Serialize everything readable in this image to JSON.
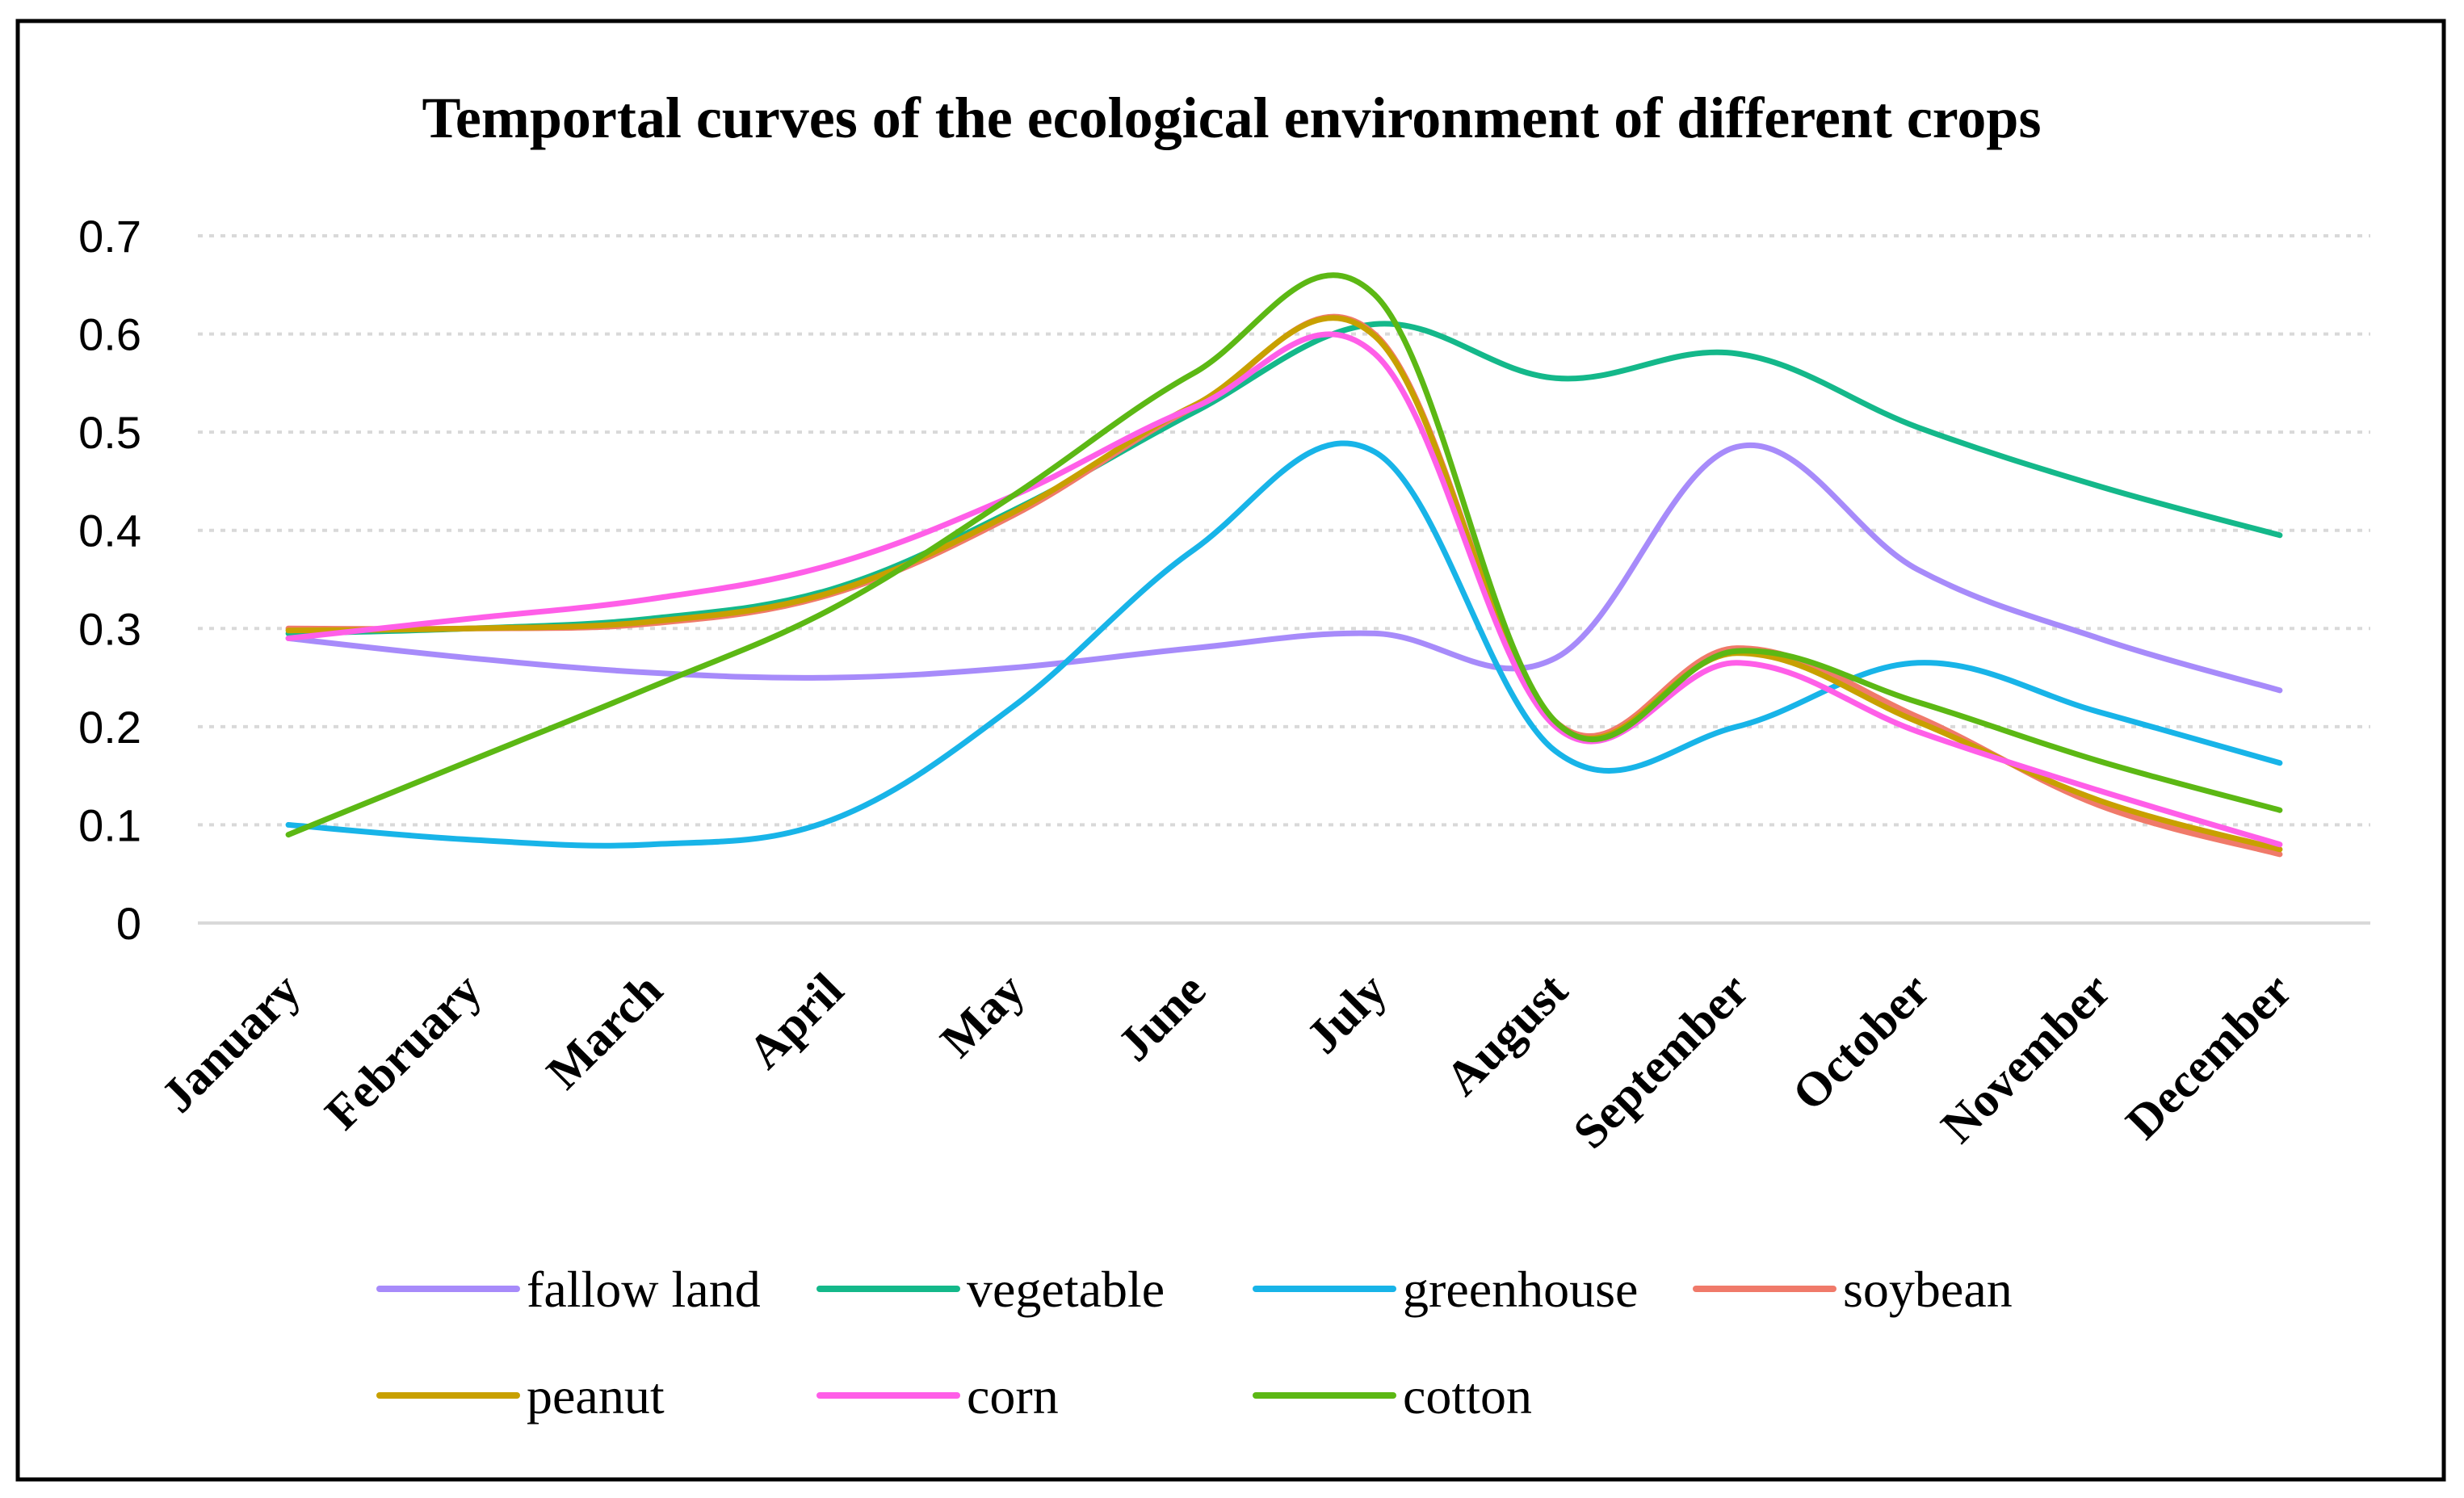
{
  "chart_data": {
    "type": "line",
    "title": "Temportal curves of the ecological environment of different crops",
    "xlabel": "",
    "ylabel": "",
    "ylim": [
      0,
      0.7
    ],
    "yticks": [
      0,
      0.1,
      0.2,
      0.3,
      0.4,
      0.5,
      0.6,
      0.7
    ],
    "ytick_labels": [
      "0",
      "0.1",
      "0.2",
      "0.3",
      "0.4",
      "0.5",
      "0.6",
      "0.7"
    ],
    "grid": true,
    "legend_position": "bottom",
    "categories": [
      "January",
      "February",
      "March",
      "April",
      "May",
      "June",
      "July",
      "August",
      "September",
      "October",
      "November",
      "December"
    ],
    "series": [
      {
        "name": "fallow land",
        "color": "#a78bfa",
        "values": [
          0.29,
          0.27,
          0.255,
          0.25,
          0.26,
          0.28,
          0.295,
          0.27,
          0.485,
          0.36,
          0.29,
          0.237
        ]
      },
      {
        "name": "vegetable",
        "color": "#14b88a",
        "values": [
          0.295,
          0.3,
          0.31,
          0.34,
          0.42,
          0.52,
          0.61,
          0.555,
          0.58,
          0.505,
          0.445,
          0.395
        ]
      },
      {
        "name": "greenhouse",
        "color": "#18b4e8",
        "values": [
          0.1,
          0.085,
          0.08,
          0.105,
          0.22,
          0.38,
          0.48,
          0.175,
          0.2,
          0.265,
          0.215,
          0.163
        ]
      },
      {
        "name": "soybean",
        "color": "#f07a6a",
        "values": [
          0.3,
          0.3,
          0.305,
          0.335,
          0.415,
          0.525,
          0.6,
          0.205,
          0.28,
          0.21,
          0.12,
          0.07
        ]
      },
      {
        "name": "peanut",
        "color": "#c8a000",
        "values": [
          0.298,
          0.3,
          0.307,
          0.337,
          0.418,
          0.527,
          0.598,
          0.203,
          0.275,
          0.205,
          0.125,
          0.075
        ]
      },
      {
        "name": "corn",
        "color": "#ff5ee8",
        "values": [
          0.29,
          0.31,
          0.33,
          0.365,
          0.435,
          0.525,
          0.58,
          0.2,
          0.265,
          0.195,
          0.135,
          0.08
        ]
      },
      {
        "name": "cotton",
        "color": "#5cb814",
        "values": [
          0.09,
          0.165,
          0.24,
          0.32,
          0.435,
          0.56,
          0.64,
          0.205,
          0.277,
          0.225,
          0.165,
          0.115
        ]
      }
    ]
  }
}
